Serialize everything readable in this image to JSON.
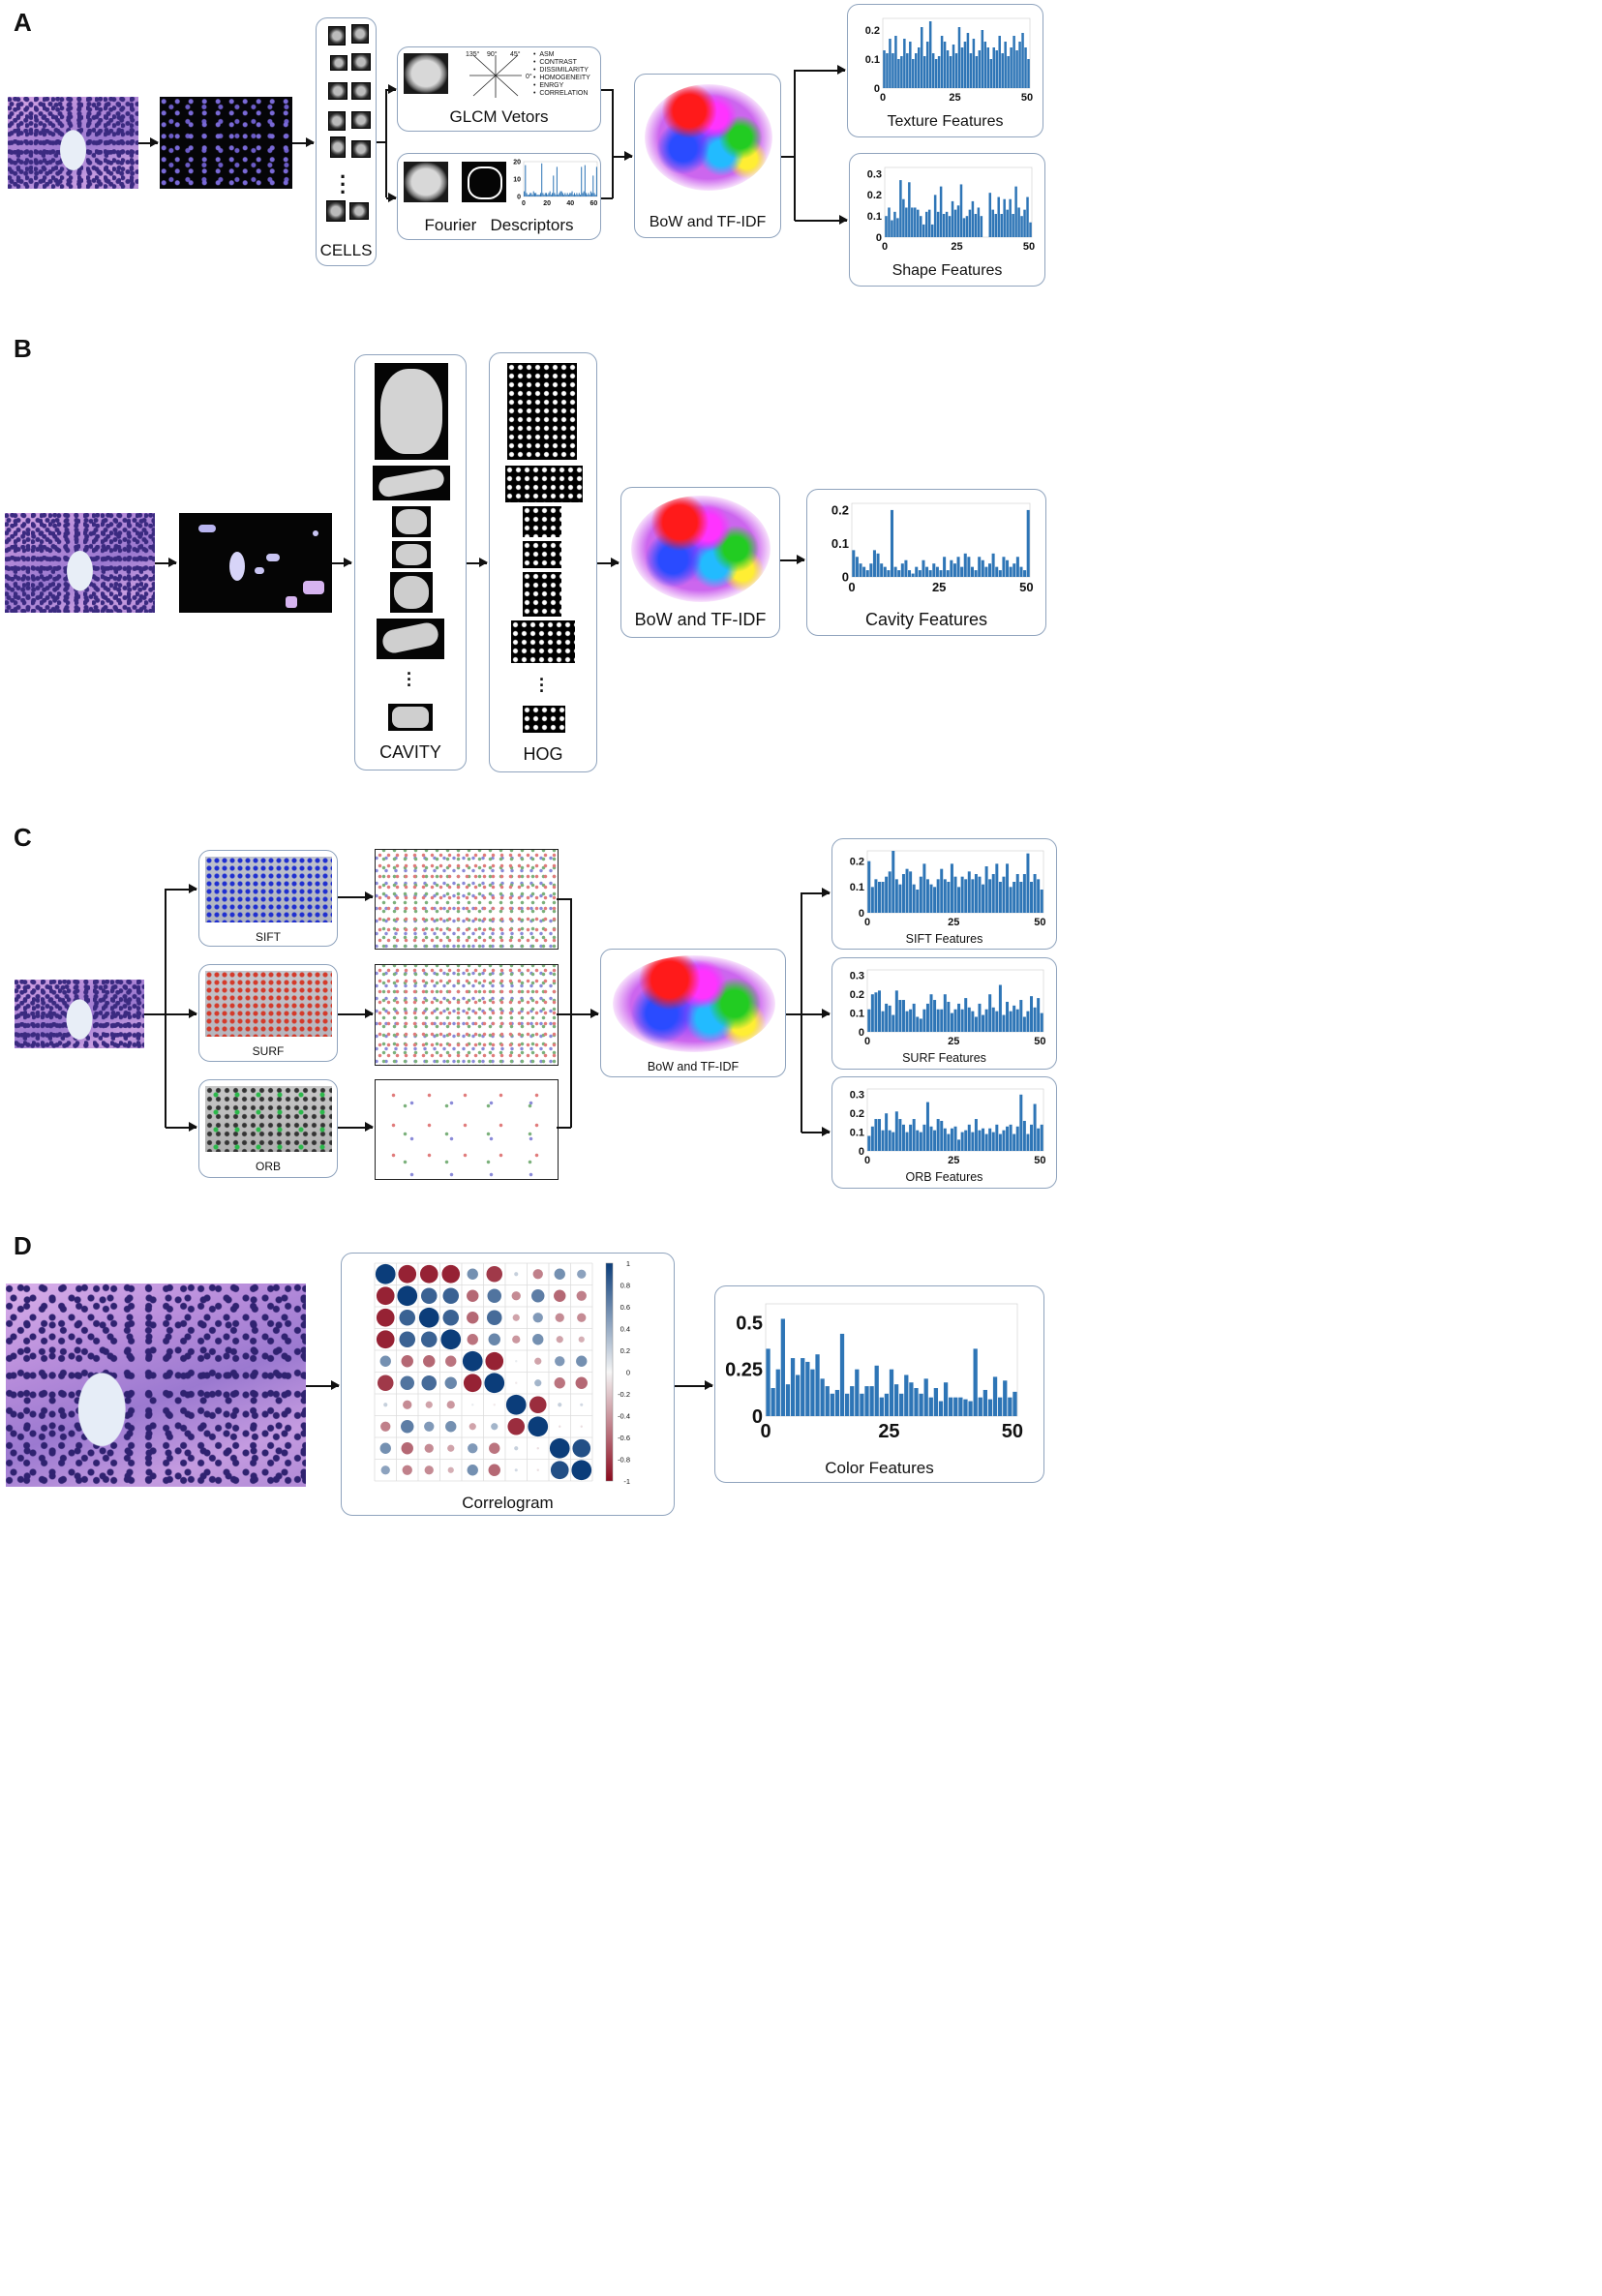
{
  "panels": {
    "A": {
      "letter": "A",
      "cells_label": "CELLS",
      "glcm_label": "GLCM Vetors",
      "glcm_props": [
        "ASM",
        "CONTRAST",
        "DISSIMILARITY",
        "HOMOGENEITY",
        "ENRGY",
        "CORRELATION"
      ],
      "glcm_angles": [
        "135°",
        "90°",
        "45°",
        "0°"
      ],
      "fourier_label": "Fourier   Descriptors",
      "bow_label": "BoW and TF-IDF",
      "texture_label": "Texture Features",
      "shape_label": "Shape Features"
    },
    "B": {
      "letter": "B",
      "cavity_label": "CAVITY",
      "hog_label": "HOG",
      "bow_label": "BoW and TF-IDF",
      "cavity_features_label": "Cavity Features"
    },
    "C": {
      "letter": "C",
      "sift_label": "SIFT",
      "surf_label": "SURF",
      "orb_label": "ORB",
      "bow_label": "BoW and TF-IDF",
      "sift_features_label": "SIFT Features",
      "surf_features_label": "SURF Features",
      "orb_features_label": "ORB Features"
    },
    "D": {
      "letter": "D",
      "correlogram_label": "Correlogram",
      "color_features_label": "Color Features"
    }
  },
  "chart_data": [
    {
      "id": "fourier",
      "type": "bar",
      "x_ticks": [
        0,
        20,
        40,
        60
      ],
      "y_ticks": [
        0,
        10,
        20
      ],
      "ylim": [
        0,
        20
      ],
      "xlim": [
        0,
        63
      ],
      "values": [
        3,
        18,
        2,
        1,
        1,
        2,
        2,
        1,
        3,
        2,
        2,
        1,
        1,
        1,
        2,
        19,
        2,
        1,
        2,
        2,
        1,
        2,
        3,
        1,
        2,
        12,
        2,
        1,
        17,
        1,
        2,
        3,
        3,
        2,
        1,
        2,
        1,
        2,
        1,
        2,
        2,
        3,
        1,
        2,
        1,
        2,
        1,
        2,
        1,
        17,
        2,
        3,
        18,
        2,
        1,
        2,
        1,
        3,
        2,
        12,
        2,
        1,
        17
      ]
    },
    {
      "id": "texture",
      "type": "bar",
      "x_ticks": [
        0,
        25,
        50
      ],
      "y_ticks": [
        0,
        0.1,
        0.2
      ],
      "ylim": [
        0,
        0.24
      ],
      "xlim": [
        0,
        51
      ],
      "values": [
        0.13,
        0.12,
        0.17,
        0.12,
        0.18,
        0.1,
        0.11,
        0.17,
        0.12,
        0.16,
        0.1,
        0.12,
        0.14,
        0.21,
        0.11,
        0.16,
        0.23,
        0.12,
        0.1,
        0.11,
        0.18,
        0.16,
        0.13,
        0.11,
        0.15,
        0.12,
        0.21,
        0.14,
        0.16,
        0.19,
        0.12,
        0.17,
        0.11,
        0.13,
        0.2,
        0.16,
        0.14,
        0.1,
        0.14,
        0.13,
        0.18,
        0.12,
        0.16,
        0.11,
        0.14,
        0.18,
        0.13,
        0.16,
        0.19,
        0.14,
        0.1
      ]
    },
    {
      "id": "shape",
      "type": "bar",
      "x_ticks": [
        0,
        25,
        50
      ],
      "y_ticks": [
        0,
        0.1,
        0.2,
        0.3
      ],
      "ylim": [
        0,
        0.33
      ],
      "xlim": [
        0,
        51
      ],
      "values": [
        0.1,
        0.14,
        0.08,
        0.12,
        0.09,
        0.27,
        0.18,
        0.14,
        0.26,
        0.14,
        0.14,
        0.13,
        0.1,
        0.06,
        0.12,
        0.13,
        0.06,
        0.2,
        0.12,
        0.24,
        0.11,
        0.12,
        0.1,
        0.17,
        0.13,
        0.15,
        0.25,
        0.09,
        0.1,
        0.13,
        0.17,
        0.11,
        0.14,
        0.1,
        0.0,
        0.0,
        0.21,
        0.13,
        0.11,
        0.19,
        0.11,
        0.18,
        0.13,
        0.18,
        0.11,
        0.24,
        0.14,
        0.1,
        0.13,
        0.19,
        0.07
      ]
    },
    {
      "id": "cavity",
      "type": "bar",
      "x_ticks": [
        0,
        25,
        50
      ],
      "y_ticks": [
        0,
        0.1,
        0.2
      ],
      "ylim": [
        0,
        0.22
      ],
      "xlim": [
        0,
        51
      ],
      "values": [
        0.08,
        0.06,
        0.04,
        0.03,
        0.02,
        0.04,
        0.08,
        0.07,
        0.04,
        0.03,
        0.02,
        0.2,
        0.03,
        0.02,
        0.04,
        0.05,
        0.02,
        0.01,
        0.03,
        0.02,
        0.05,
        0.03,
        0.02,
        0.04,
        0.03,
        0.02,
        0.06,
        0.02,
        0.05,
        0.04,
        0.06,
        0.03,
        0.07,
        0.06,
        0.03,
        0.02,
        0.06,
        0.05,
        0.03,
        0.04,
        0.07,
        0.03,
        0.02,
        0.06,
        0.05,
        0.03,
        0.04,
        0.06,
        0.03,
        0.02,
        0.2
      ]
    },
    {
      "id": "sift",
      "type": "bar",
      "x_ticks": [
        0,
        25,
        50
      ],
      "y_ticks": [
        0,
        0.1,
        0.2
      ],
      "ylim": [
        0,
        0.24
      ],
      "xlim": [
        0,
        51
      ],
      "values": [
        0.2,
        0.1,
        0.13,
        0.12,
        0.12,
        0.14,
        0.16,
        0.24,
        0.13,
        0.11,
        0.15,
        0.17,
        0.16,
        0.11,
        0.09,
        0.14,
        0.19,
        0.13,
        0.11,
        0.1,
        0.13,
        0.17,
        0.13,
        0.12,
        0.19,
        0.14,
        0.1,
        0.14,
        0.13,
        0.16,
        0.13,
        0.15,
        0.14,
        0.11,
        0.18,
        0.13,
        0.15,
        0.19,
        0.12,
        0.14,
        0.19,
        0.1,
        0.12,
        0.15,
        0.12,
        0.15,
        0.23,
        0.12,
        0.15,
        0.13,
        0.09
      ]
    },
    {
      "id": "surf",
      "type": "bar",
      "x_ticks": [
        0,
        25,
        50
      ],
      "y_ticks": [
        0,
        0.1,
        0.2,
        0.3
      ],
      "ylim": [
        0,
        0.33
      ],
      "xlim": [
        0,
        51
      ],
      "values": [
        0.12,
        0.2,
        0.21,
        0.22,
        0.11,
        0.15,
        0.14,
        0.09,
        0.22,
        0.17,
        0.17,
        0.11,
        0.12,
        0.15,
        0.08,
        0.07,
        0.12,
        0.15,
        0.2,
        0.17,
        0.12,
        0.12,
        0.2,
        0.16,
        0.1,
        0.12,
        0.15,
        0.12,
        0.18,
        0.13,
        0.11,
        0.08,
        0.15,
        0.09,
        0.12,
        0.2,
        0.13,
        0.11,
        0.25,
        0.09,
        0.16,
        0.11,
        0.14,
        0.12,
        0.17,
        0.08,
        0.11,
        0.19,
        0.13,
        0.18,
        0.1
      ]
    },
    {
      "id": "orb",
      "type": "bar",
      "x_ticks": [
        0,
        25,
        50
      ],
      "y_ticks": [
        0,
        0.1,
        0.2,
        0.3
      ],
      "ylim": [
        0,
        0.33
      ],
      "xlim": [
        0,
        51
      ],
      "values": [
        0.08,
        0.13,
        0.17,
        0.17,
        0.11,
        0.2,
        0.11,
        0.1,
        0.21,
        0.17,
        0.14,
        0.1,
        0.14,
        0.17,
        0.11,
        0.1,
        0.14,
        0.26,
        0.13,
        0.11,
        0.17,
        0.16,
        0.12,
        0.09,
        0.12,
        0.13,
        0.06,
        0.1,
        0.11,
        0.14,
        0.1,
        0.17,
        0.11,
        0.12,
        0.09,
        0.12,
        0.1,
        0.14,
        0.09,
        0.11,
        0.13,
        0.14,
        0.09,
        0.13,
        0.3,
        0.16,
        0.09,
        0.14,
        0.25,
        0.12,
        0.14
      ]
    },
    {
      "id": "color",
      "type": "bar",
      "x_ticks": [
        0,
        25,
        50
      ],
      "y_ticks": [
        0,
        0.25,
        0.5
      ],
      "ylim": [
        0,
        0.6
      ],
      "xlim": [
        0,
        51
      ],
      "values": [
        0.36,
        0.15,
        0.25,
        0.52,
        0.17,
        0.31,
        0.22,
        0.31,
        0.29,
        0.25,
        0.33,
        0.2,
        0.16,
        0.12,
        0.14,
        0.44,
        0.12,
        0.16,
        0.25,
        0.12,
        0.16,
        0.16,
        0.27,
        0.1,
        0.12,
        0.25,
        0.17,
        0.12,
        0.22,
        0.18,
        0.15,
        0.12,
        0.2,
        0.1,
        0.15,
        0.08,
        0.18,
        0.1,
        0.1,
        0.1,
        0.09,
        0.08,
        0.36,
        0.1,
        0.14,
        0.09,
        0.21,
        0.1,
        0.19,
        0.1,
        0.13
      ]
    },
    {
      "id": "correlogram",
      "type": "heatmap",
      "colorbar_ticks": [
        "1",
        "0.8",
        "0.6",
        "0.4",
        "0.2",
        "0",
        "-0.2",
        "-0.4",
        "-0.6",
        "-0.8",
        "-1"
      ],
      "matrix": [
        [
          1.0,
          -0.9,
          -0.9,
          -0.9,
          0.55,
          -0.8,
          0.2,
          -0.5,
          0.55,
          0.45
        ],
        [
          -0.9,
          1.0,
          0.8,
          0.8,
          -0.6,
          0.7,
          -0.45,
          0.65,
          -0.6,
          -0.5
        ],
        [
          -0.9,
          0.8,
          1.0,
          0.8,
          -0.6,
          0.75,
          -0.35,
          0.5,
          -0.45,
          -0.45
        ],
        [
          -0.9,
          0.8,
          0.8,
          1.0,
          -0.55,
          0.6,
          -0.4,
          0.55,
          -0.35,
          -0.3
        ],
        [
          0.55,
          -0.6,
          -0.6,
          -0.55,
          1.0,
          -0.9,
          0.05,
          -0.35,
          0.5,
          0.55
        ],
        [
          -0.8,
          0.7,
          0.75,
          0.6,
          -0.9,
          1.0,
          -0.05,
          0.35,
          -0.55,
          -0.6
        ],
        [
          0.2,
          -0.45,
          -0.35,
          -0.4,
          0.05,
          -0.05,
          1.0,
          -0.85,
          0.2,
          0.15
        ],
        [
          -0.5,
          0.65,
          0.5,
          0.55,
          -0.35,
          0.35,
          -0.85,
          1.0,
          -0.1,
          -0.1
        ],
        [
          0.55,
          -0.6,
          -0.45,
          -0.35,
          0.5,
          -0.55,
          0.2,
          -0.1,
          1.0,
          0.9
        ],
        [
          0.45,
          -0.5,
          -0.45,
          -0.3,
          0.55,
          -0.6,
          0.15,
          -0.1,
          0.9,
          1.0
        ]
      ]
    }
  ],
  "colors": {
    "bar": "#2e75b6",
    "box_border": "#8fa3bd",
    "pos": "#0b3d7a",
    "neg": "#8b0a1e"
  }
}
